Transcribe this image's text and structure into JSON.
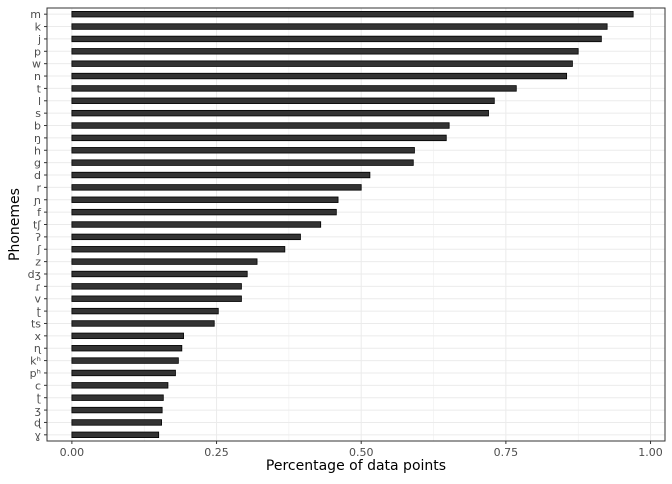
{
  "chart_data": {
    "type": "bar",
    "orientation": "horizontal",
    "xlabel": "Percentage of data points",
    "ylabel": "Phonemes",
    "xlim": [
      -0.043,
      1.025
    ],
    "x_ticks": [
      0.0,
      0.25,
      0.5,
      0.75,
      1.0
    ],
    "x_tick_labels": [
      "0.00",
      "0.25",
      "0.50",
      "0.75",
      "1.00"
    ],
    "grid": true,
    "legend": "none",
    "colors": {
      "bar_fill": "#333333",
      "bar_edge": "#000000",
      "grid": "#ebebeb",
      "panel_border": "#333333"
    },
    "categories": [
      "m",
      "k",
      "j",
      "p",
      "w",
      "n",
      "t",
      "l",
      "s",
      "b",
      "ŋ",
      "h",
      "g",
      "d",
      "r",
      "ɲ",
      "f",
      "tʃ",
      "ʔ",
      "ʃ",
      "z",
      "dʒ",
      "ɾ",
      "v",
      "ʈ",
      "ts",
      "x",
      "ɳ",
      "kʰ",
      "pʰ",
      "c",
      "ʈ",
      "ʒ",
      "ɖ",
      "ɣ"
    ],
    "values": [
      0.97,
      0.925,
      0.915,
      0.875,
      0.865,
      0.855,
      0.768,
      0.73,
      0.72,
      0.652,
      0.647,
      0.592,
      0.59,
      0.515,
      0.5,
      0.46,
      0.457,
      0.43,
      0.395,
      0.368,
      0.32,
      0.303,
      0.293,
      0.293,
      0.253,
      0.246,
      0.193,
      0.19,
      0.184,
      0.179,
      0.166,
      0.158,
      0.156,
      0.155,
      0.15
    ]
  }
}
